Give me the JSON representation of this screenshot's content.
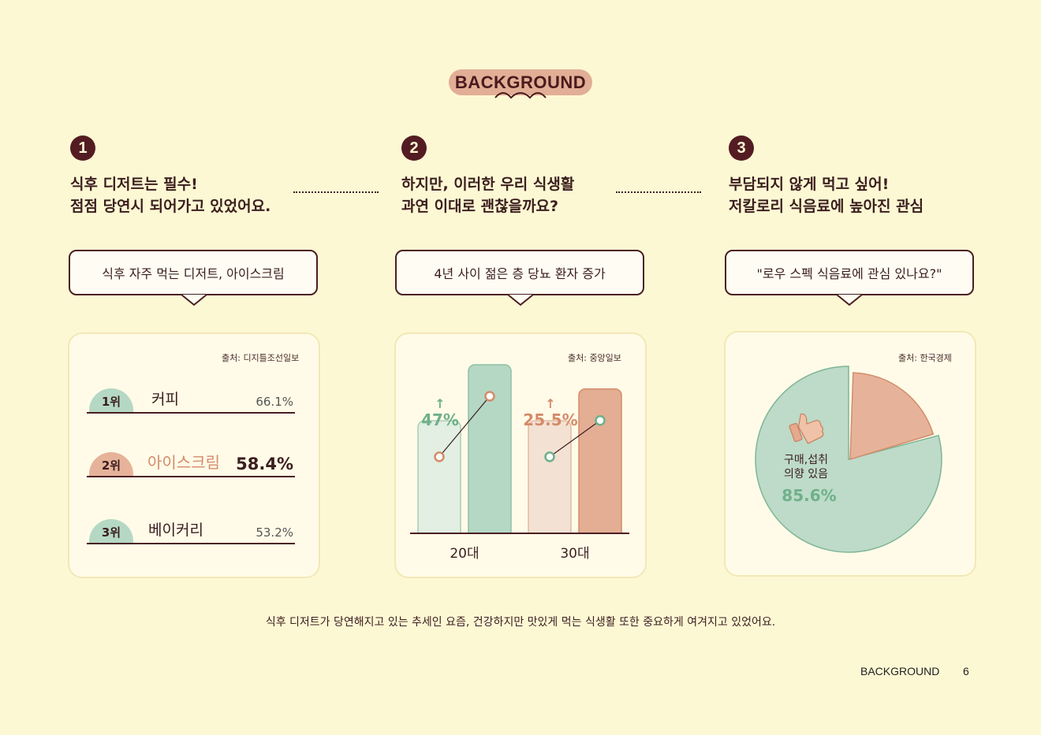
{
  "header": {
    "badge": "BACKGROUND"
  },
  "sections": [
    {
      "number": "1",
      "headline": "식후 디저트는 필수!\n점점 당연시 되어가고 있었어요.",
      "bubble": "식후 자주 먹는 디저트, 아이스크림",
      "source": "출처: 디지틀조선일보"
    },
    {
      "number": "2",
      "headline": "하지만, 이러한 우리 식생활\n과연 이대로 괜찮을까요?",
      "bubble": "4년 사이 젊은 층 당뇨 환자 증가",
      "source": "출처: 중앙일보"
    },
    {
      "number": "3",
      "headline": "부담되지 않게 먹고 싶어!\n저칼로리 식음료에 높아진 관심",
      "bubble": "\"로우 스펙 식음료에 관심 있나요?\"",
      "source": "출처: 한국경제"
    }
  ],
  "ranking": [
    {
      "rank": "1위",
      "name": "커피",
      "value": "66.1%",
      "highlight": false,
      "color": "#b5d8c4"
    },
    {
      "rank": "2위",
      "name": "아이스크림",
      "value": "58.4%",
      "highlight": true,
      "color": "#e6b39a"
    },
    {
      "rank": "3위",
      "name": "베이커리",
      "value": "53.2%",
      "highlight": false,
      "color": "#b5d8c4"
    }
  ],
  "chart_data": [
    {
      "type": "bar",
      "categories": [
        "20대",
        "30대"
      ],
      "series": [
        {
          "values": [
            1.0,
            1.0
          ],
          "colors": [
            "#e2efe2",
            "#f3e2d3"
          ]
        },
        {
          "values": [
            1.47,
            1.255
          ],
          "colors": [
            "#b5d8c4",
            "#e3ae94"
          ]
        }
      ],
      "annotations": [
        {
          "category": "20대",
          "label": "47%",
          "arrow": "↑",
          "color": "#6fb08a"
        },
        {
          "category": "30대",
          "label": "25.5%",
          "arrow": "↑",
          "color": "#d48b6b"
        }
      ]
    },
    {
      "type": "pie",
      "slices": [
        {
          "label": "구매,섭취\n의향 있음",
          "value": 85.6,
          "color": "#bddbc8",
          "display": "85.6%"
        },
        {
          "label": "",
          "value": 14.4,
          "color": "#e6b39a"
        }
      ],
      "highlight_color": "#6fb08a"
    }
  ],
  "caption": "식후 디저트가 당연해지고 있는 추세인 요즘, 건강하지만 맛있게 먹는 식생활 또한 중요하게 여겨지고 있었어요.",
  "footer": {
    "label": "BACKGROUND",
    "page": "6"
  }
}
